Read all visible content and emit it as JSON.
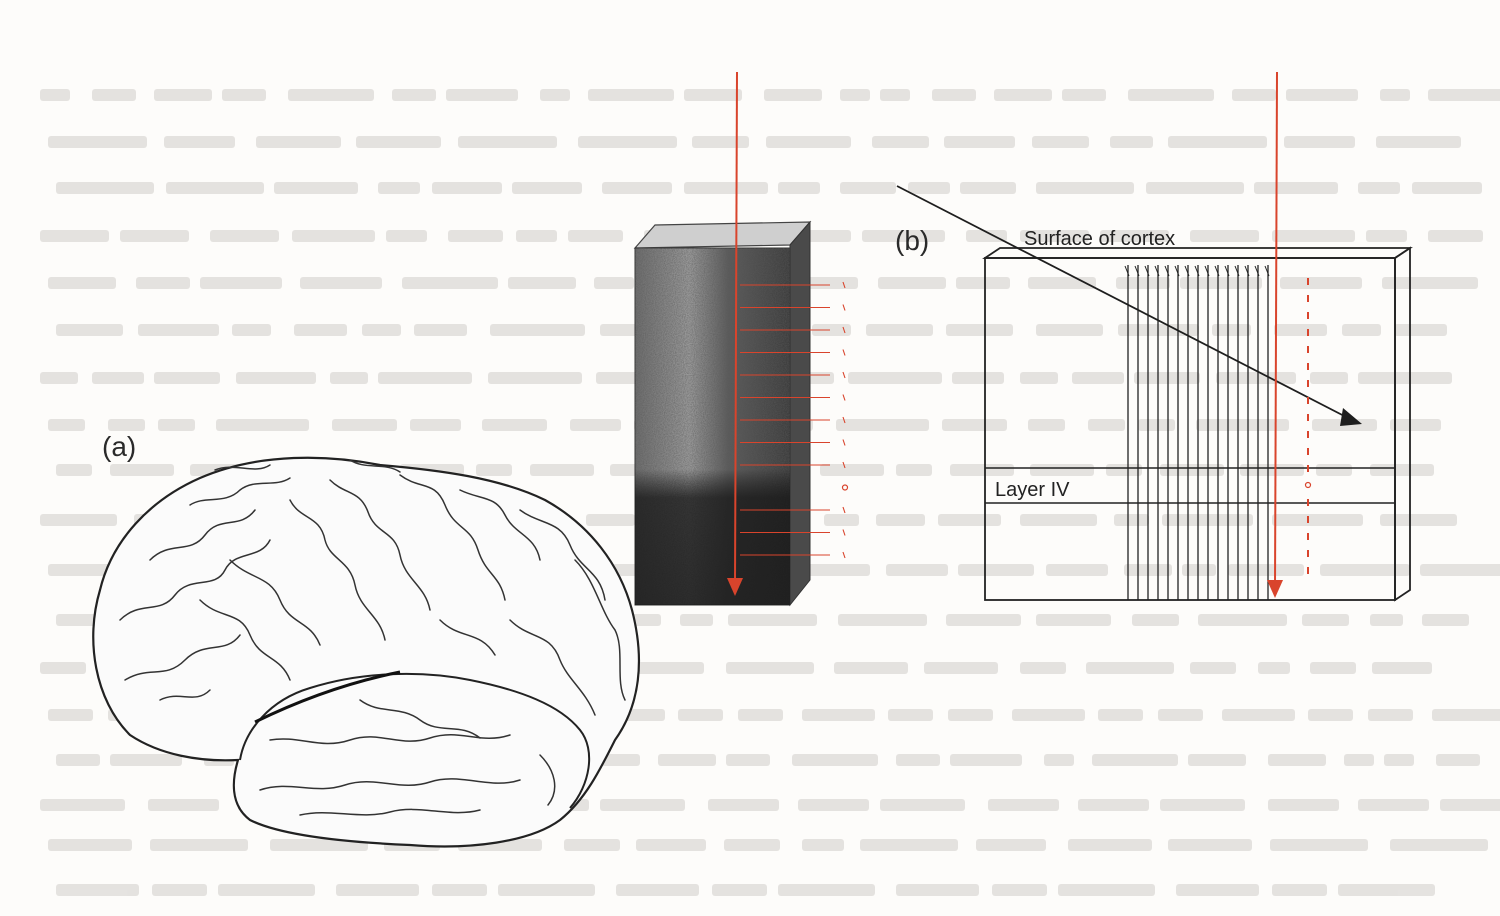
{
  "labels": {
    "panel_a": "(a)",
    "panel_b": "(b)",
    "surface": "Surface of cortex",
    "layer": "Layer IV"
  },
  "colors": {
    "electrode_red": "#d9442c",
    "background_text_bleed": "#b8b4ae",
    "line_dark": "#1e1e1e",
    "tissue_dark": "#2d2d2d"
  },
  "icons": {
    "brain": "brain-illustration",
    "cortex_block": "cortex-tissue-block"
  }
}
